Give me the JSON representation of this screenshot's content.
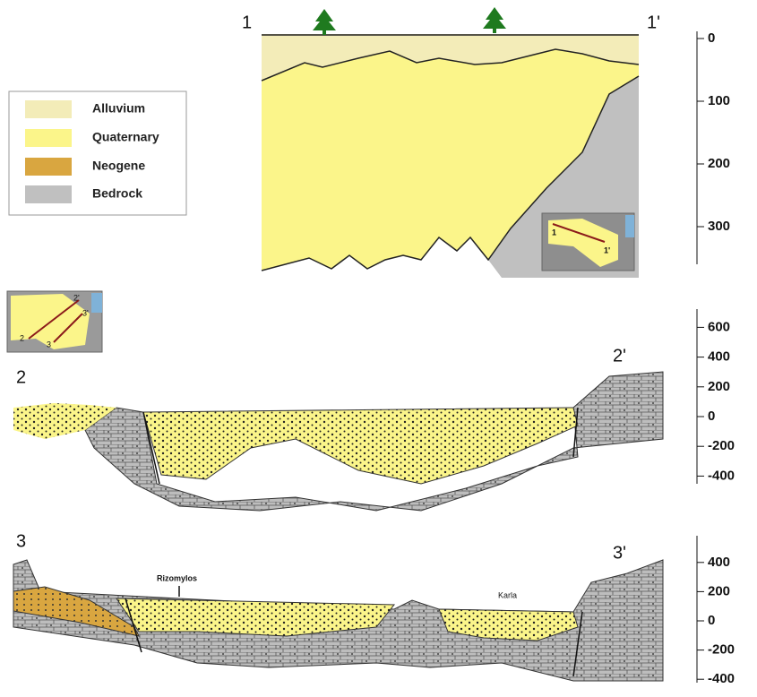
{
  "legend": {
    "items": [
      "Alluvium",
      "Quaternary",
      "Neogene",
      "Bedrock"
    ]
  },
  "section1": {
    "start": "1",
    "end": "1'",
    "inset": {
      "start": "1",
      "end": "1'"
    },
    "scale": [
      0,
      100,
      200,
      300
    ]
  },
  "section2": {
    "start": "2",
    "end": "2'",
    "scale": [
      600,
      400,
      200,
      0,
      -200,
      -400
    ]
  },
  "section3": {
    "start": "3",
    "end": "3'",
    "places": [
      "Rizomylos",
      "Karla"
    ],
    "scale": [
      400,
      200,
      0,
      -200,
      -400
    ]
  },
  "inset23": {
    "labels": [
      "2",
      "2'",
      "3'",
      "3"
    ]
  }
}
